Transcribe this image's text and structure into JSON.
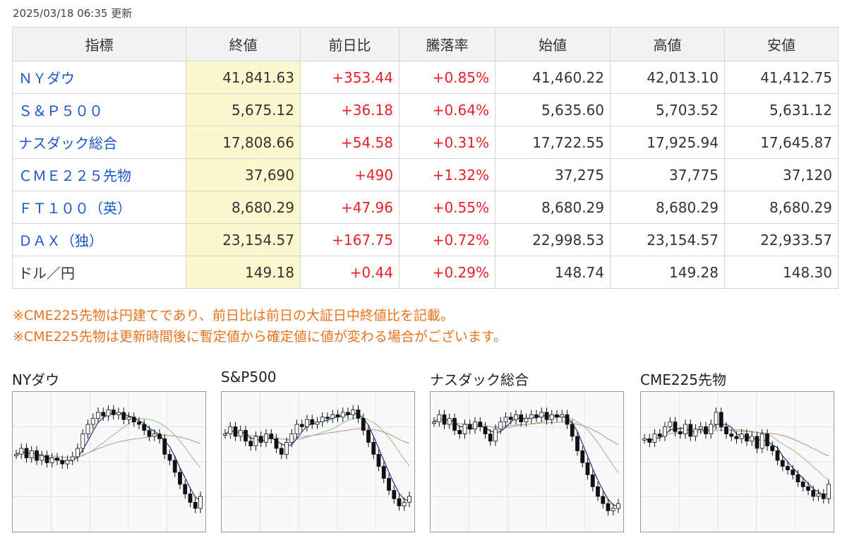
{
  "updated": "2025/03/18 06:35 更新",
  "table": {
    "headers": [
      "指標",
      "終値",
      "前日比",
      "騰落率",
      "始値",
      "高値",
      "安値"
    ],
    "rows": [
      {
        "name": "ＮＹダウ",
        "close": "41,841.63",
        "change": "+353.44",
        "pct": "+0.85%",
        "open": "41,460.22",
        "high": "42,013.10",
        "low": "41,412.75",
        "link": true
      },
      {
        "name": "Ｓ＆Ｐ５００",
        "close": "5,675.12",
        "change": "+36.18",
        "pct": "+0.64%",
        "open": "5,635.60",
        "high": "5,703.52",
        "low": "5,631.12",
        "link": true
      },
      {
        "name": "ナスダック総合",
        "close": "17,808.66",
        "change": "+54.58",
        "pct": "+0.31%",
        "open": "17,722.55",
        "high": "17,925.94",
        "low": "17,645.87",
        "link": true
      },
      {
        "name": "ＣＭＥ２２５先物",
        "close": "37,690",
        "change": "+490",
        "pct": "+1.32%",
        "open": "37,275",
        "high": "37,775",
        "low": "37,120",
        "link": true
      },
      {
        "name": "ＦＴ１００（英）",
        "close": "8,680.29",
        "change": "+47.96",
        "pct": "+0.55%",
        "open": "8,680.29",
        "high": "8,680.29",
        "low": "8,680.29",
        "link": true
      },
      {
        "name": "ＤＡＸ（独）",
        "close": "23,154.57",
        "change": "+167.75",
        "pct": "+0.72%",
        "open": "22,998.53",
        "high": "23,154.57",
        "low": "22,933.57",
        "link": true
      },
      {
        "name": "ドル／円",
        "close": "149.18",
        "change": "+0.44",
        "pct": "+0.29%",
        "open": "148.74",
        "high": "149.28",
        "low": "148.30",
        "link": false
      }
    ]
  },
  "notes": [
    "※CME225先物は円建てであり、前日比は前日の大証日中終値比を記載。",
    "※CME225先物は更新時間後に暫定値から確定値に値が変わる場合がございます。"
  ],
  "colors": {
    "link": "#1a56c8",
    "up": "#e8202a",
    "note": "#e8731e",
    "highlight": "#fbf7cf",
    "ma_short": "#2b3f8f",
    "ma_mid": "#8cc08c",
    "ma_long": "#c08a8a"
  },
  "charts": [
    {
      "title": "NYダウ",
      "closes": [
        0.55,
        0.6,
        0.52,
        0.58,
        0.5,
        0.54,
        0.48,
        0.52,
        0.5,
        0.47,
        0.5,
        0.53,
        0.6,
        0.72,
        0.8,
        0.85,
        0.9,
        0.87,
        0.92,
        0.88,
        0.9,
        0.84,
        0.86,
        0.82,
        0.8,
        0.75,
        0.7,
        0.72,
        0.68,
        0.55,
        0.5,
        0.4,
        0.3,
        0.22,
        0.15,
        0.1,
        0.2
      ]
    },
    {
      "title": "S&P500",
      "closes": [
        0.72,
        0.78,
        0.7,
        0.75,
        0.66,
        0.62,
        0.7,
        0.65,
        0.72,
        0.68,
        0.6,
        0.55,
        0.65,
        0.72,
        0.8,
        0.78,
        0.84,
        0.8,
        0.82,
        0.86,
        0.85,
        0.88,
        0.86,
        0.9,
        0.88,
        0.92,
        0.85,
        0.75,
        0.65,
        0.55,
        0.45,
        0.35,
        0.25,
        0.18,
        0.12,
        0.15,
        0.2
      ]
    },
    {
      "title": "ナスダック総合",
      "closes": [
        0.82,
        0.88,
        0.8,
        0.85,
        0.75,
        0.72,
        0.8,
        0.76,
        0.82,
        0.78,
        0.72,
        0.66,
        0.76,
        0.82,
        0.86,
        0.84,
        0.88,
        0.82,
        0.85,
        0.88,
        0.86,
        0.9,
        0.84,
        0.88,
        0.86,
        0.88,
        0.8,
        0.7,
        0.58,
        0.48,
        0.38,
        0.28,
        0.2,
        0.14,
        0.08,
        0.1,
        0.14
      ]
    },
    {
      "title": "CME225先物",
      "closes": [
        0.68,
        0.65,
        0.72,
        0.7,
        0.78,
        0.82,
        0.74,
        0.72,
        0.8,
        0.7,
        0.76,
        0.78,
        0.72,
        0.8,
        0.9,
        0.78,
        0.72,
        0.7,
        0.68,
        0.72,
        0.66,
        0.7,
        0.6,
        0.72,
        0.62,
        0.58,
        0.5,
        0.45,
        0.42,
        0.38,
        0.32,
        0.28,
        0.25,
        0.2,
        0.22,
        0.18,
        0.3
      ]
    }
  ]
}
